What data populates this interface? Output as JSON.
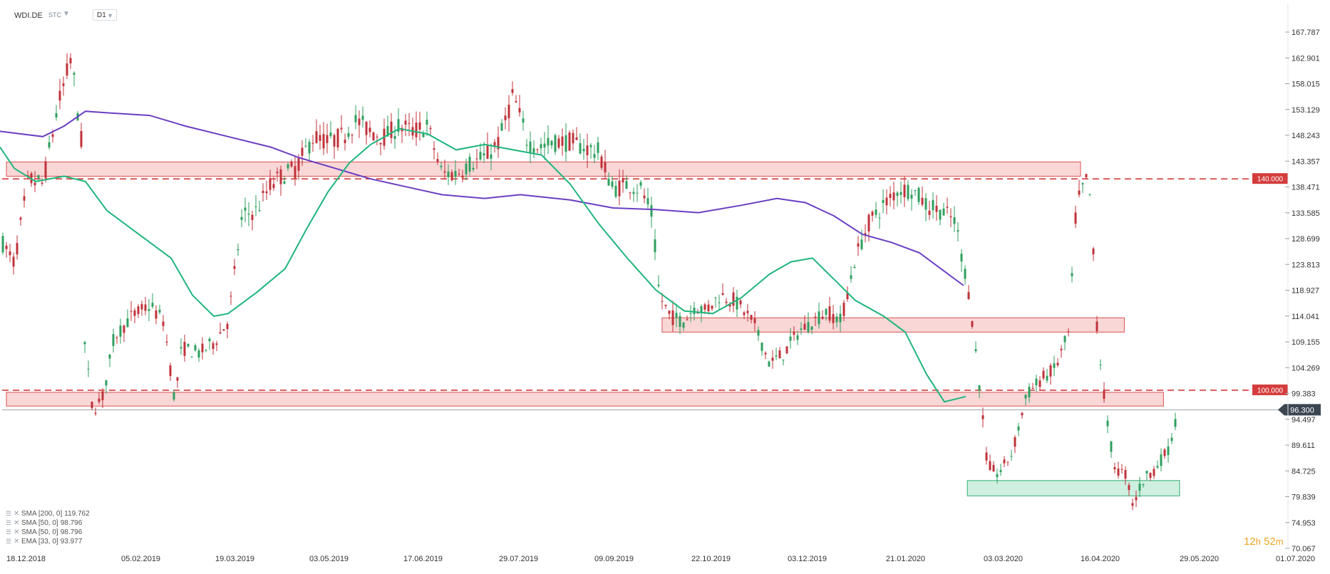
{
  "toolbar": {
    "symbol": "WDI.DE",
    "instrument_type": "STC",
    "timeframe": "D1"
  },
  "legend": [
    {
      "label": "SMA [200, 0]",
      "value": "119.762"
    },
    {
      "label": "SMA [50, 0]",
      "value": "98.796"
    },
    {
      "label": "SMA [50, 0]",
      "value": "98.796"
    },
    {
      "label": "EMA [33, 0]",
      "value": "93.977"
    }
  ],
  "countdown": {
    "hours": "12",
    "h": "h",
    "minutes": "52",
    "m": "m"
  },
  "colors": {
    "bull": "#2e9f5e",
    "bear": "#c0323a",
    "sma200": "#6a3fc2",
    "sma50": "#1fb57c",
    "zone_red_fill": "#f7c9c9",
    "zone_red_stroke": "#d9534f",
    "zone_green_fill": "#bfead5",
    "zone_green_stroke": "#2fae74",
    "level_line": "#d43c3c",
    "price_tag": "#3b4651"
  },
  "chart_data": {
    "type": "candlestick",
    "symbol": "WDI.DE",
    "timeframe": "D1",
    "ylim": [
      70.067,
      170.0
    ],
    "y_ticks": [
      "167.787",
      "162.901",
      "158.015",
      "153.129",
      "148.243",
      "143.357",
      "138.471",
      "133.585",
      "128.699",
      "123.813",
      "118.927",
      "114.041",
      "109.155",
      "104.269",
      "99.383",
      "94.497",
      "89.611",
      "84.725",
      "79.839",
      "74.953",
      "70.067"
    ],
    "x_ticks": [
      "18.12.2018",
      "05.02.2019",
      "19.03.2019",
      "03.05.2019",
      "17.06.2019",
      "29.07.2019",
      "09.09.2019",
      "22.10.2019",
      "03.12.2019",
      "21.01.2020",
      "03.03.2020",
      "16.04.2020",
      "29.05.2020",
      "01.07.2020"
    ],
    "current_price": "96.300",
    "levels": [
      {
        "label": "140.000",
        "value": 140.0
      },
      {
        "label": "100.000",
        "value": 100.0
      }
    ],
    "zones": [
      {
        "color": "red",
        "from_date": "18.12.2018",
        "to_date": "16.04.2020",
        "low": 140.5,
        "high": 143.2
      },
      {
        "color": "red",
        "from_date": "09.10.2019",
        "to_date": "05.05.2020",
        "low": 111.0,
        "high": 113.7
      },
      {
        "color": "red",
        "from_date": "18.12.2018",
        "to_date": "22.05.2020",
        "low": 97.0,
        "high": 99.6
      },
      {
        "color": "green",
        "from_date": "25.02.2020",
        "to_date": "29.05.2020",
        "low": 80.0,
        "high": 82.9
      }
    ],
    "sma200": [
      [
        0,
        149.0
      ],
      [
        30,
        148.5
      ],
      [
        60,
        148.0
      ],
      [
        90,
        150.0
      ],
      [
        120,
        152.8
      ],
      [
        150,
        152.5
      ],
      [
        210,
        152.0
      ],
      [
        260,
        150.0
      ],
      [
        320,
        148.0
      ],
      [
        380,
        146.0
      ],
      [
        420,
        144.0
      ],
      [
        470,
        142.0
      ],
      [
        520,
        140.0
      ],
      [
        570,
        138.5
      ],
      [
        620,
        137.0
      ],
      [
        680,
        136.3
      ],
      [
        730,
        137.0
      ],
      [
        800,
        136.0
      ],
      [
        860,
        134.5
      ],
      [
        920,
        134.2
      ],
      [
        980,
        133.6
      ],
      [
        1040,
        135.0
      ],
      [
        1090,
        136.3
      ],
      [
        1130,
        135.5
      ],
      [
        1170,
        133.0
      ],
      [
        1210,
        129.5
      ],
      [
        1250,
        128.0
      ],
      [
        1290,
        126.0
      ],
      [
        1320,
        123.0
      ],
      [
        1352,
        119.8
      ]
    ],
    "sma50": [
      [
        0,
        146.0
      ],
      [
        20,
        142.0
      ],
      [
        50,
        139.5
      ],
      [
        90,
        140.5
      ],
      [
        120,
        139.5
      ],
      [
        150,
        134.0
      ],
      [
        200,
        129.0
      ],
      [
        240,
        125.0
      ],
      [
        270,
        118.0
      ],
      [
        300,
        114.0
      ],
      [
        320,
        114.5
      ],
      [
        360,
        118.5
      ],
      [
        400,
        123.0
      ],
      [
        430,
        130.5
      ],
      [
        460,
        137.5
      ],
      [
        490,
        143.0
      ],
      [
        520,
        146.5
      ],
      [
        560,
        149.5
      ],
      [
        600,
        148.5
      ],
      [
        640,
        145.5
      ],
      [
        680,
        146.5
      ],
      [
        720,
        145.5
      ],
      [
        760,
        144.5
      ],
      [
        800,
        139.0
      ],
      [
        840,
        131.5
      ],
      [
        880,
        125.0
      ],
      [
        920,
        119.0
      ],
      [
        960,
        115.0
      ],
      [
        1000,
        114.5
      ],
      [
        1040,
        117.5
      ],
      [
        1080,
        122.0
      ],
      [
        1110,
        124.3
      ],
      [
        1140,
        125.0
      ],
      [
        1170,
        121.0
      ],
      [
        1200,
        117.0
      ],
      [
        1240,
        114.0
      ],
      [
        1270,
        111.0
      ],
      [
        1300,
        103.0
      ],
      [
        1325,
        97.8
      ],
      [
        1355,
        98.8
      ]
    ]
  }
}
